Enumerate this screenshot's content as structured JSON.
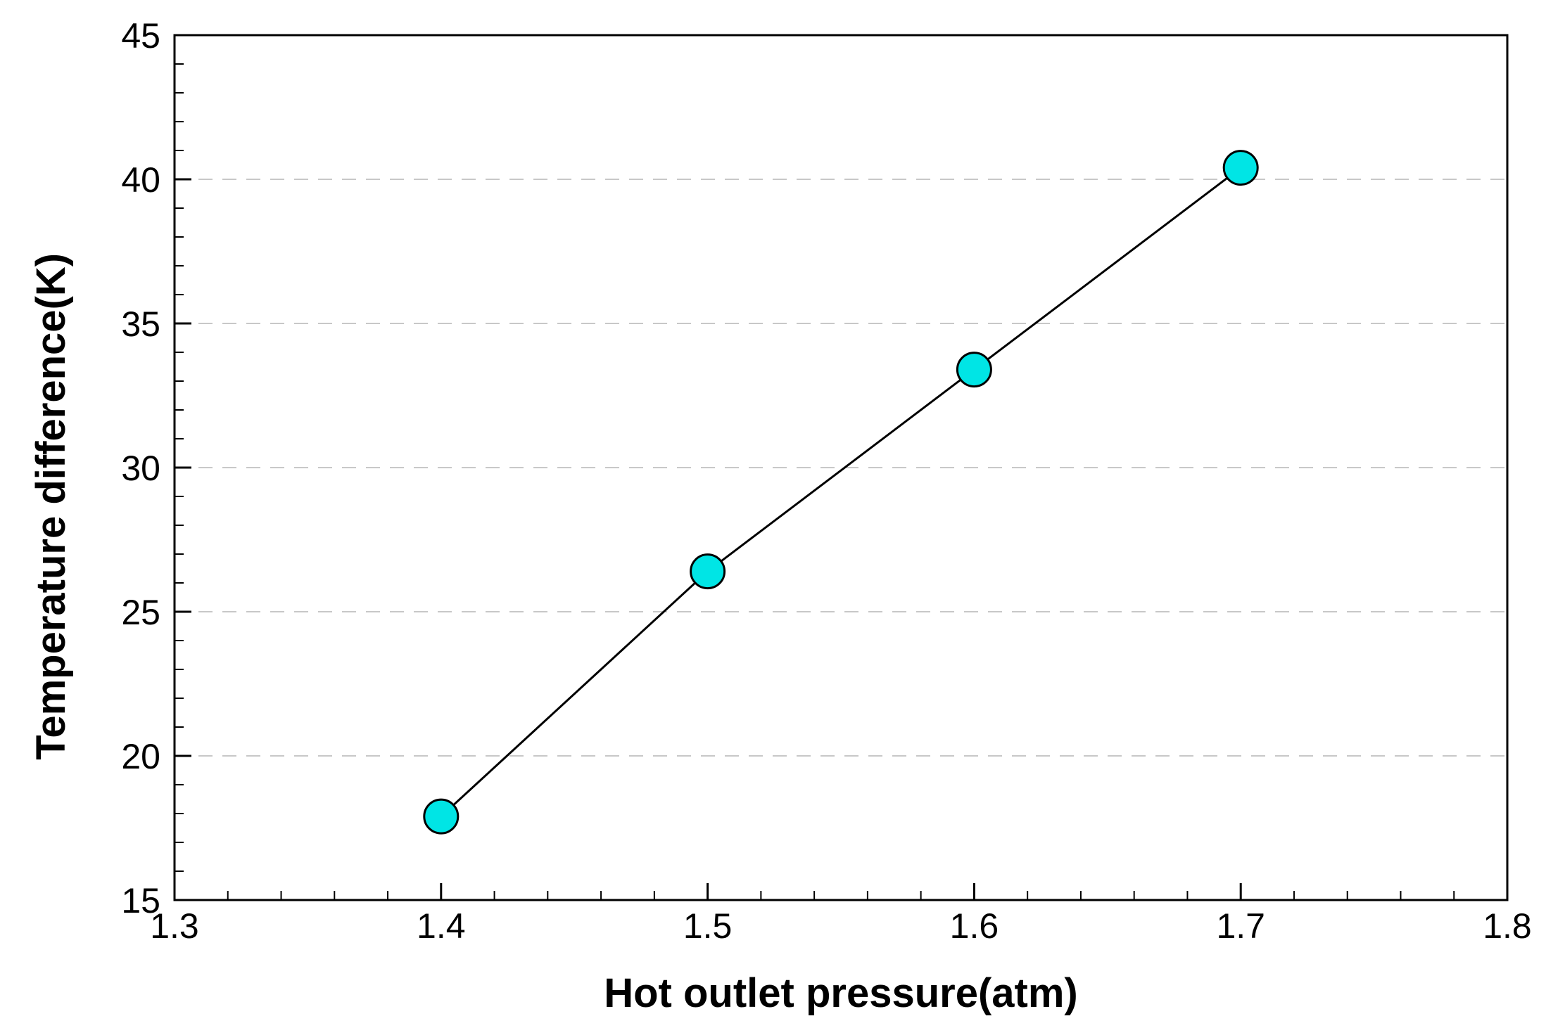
{
  "chart_data": {
    "type": "line",
    "title": "",
    "xlabel": "Hot outlet pressure(atm)",
    "ylabel": "Temperature difference(K)",
    "xlim": [
      1.3,
      1.8
    ],
    "ylim": [
      15,
      45
    ],
    "xticks": [
      "1.3",
      "1.4",
      "1.5",
      "1.6",
      "1.7",
      "1.8"
    ],
    "yticks": [
      "15",
      "20",
      "25",
      "30",
      "35",
      "40",
      "45"
    ],
    "grid": "horizontal dashed at major y ticks",
    "series": [
      {
        "x": [
          1.4,
          1.5,
          1.6,
          1.7
        ],
        "y": [
          17.9,
          26.4,
          33.4,
          40.4
        ],
        "line_color": "#000000",
        "marker": "circle",
        "marker_fill": "#00E5E5",
        "marker_edge": "#000000"
      }
    ]
  }
}
